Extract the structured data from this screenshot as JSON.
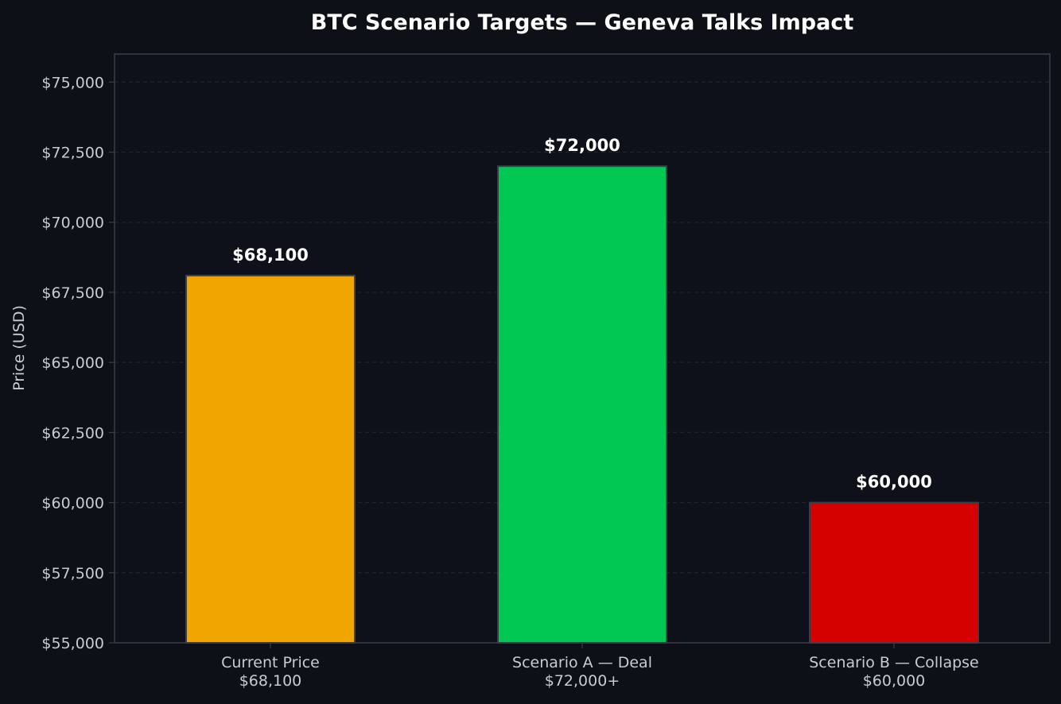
{
  "chart_data": {
    "type": "bar",
    "title": "BTC Scenario Targets — Geneva Talks Impact",
    "xlabel": "",
    "ylabel": "Price (USD)",
    "ylim": [
      55000,
      76000
    ],
    "yticks": [
      55000,
      57500,
      60000,
      62500,
      65000,
      67500,
      70000,
      72500,
      75000
    ],
    "ytick_labels": [
      "$55,000",
      "$57,500",
      "$60,000",
      "$62,500",
      "$65,000",
      "$67,500",
      "$70,000",
      "$72,500",
      "$75,000"
    ],
    "categories": [
      "Current Price\n$68,100",
      "Scenario A — Deal\n$72,000+",
      "Scenario B — Collapse\n$60,000"
    ],
    "values": [
      68100,
      72000,
      60000
    ],
    "value_labels": [
      "$68,100",
      "$72,000",
      "$60,000"
    ],
    "colors": [
      "#f0a500",
      "#00c853",
      "#d50000"
    ],
    "grid": true,
    "theme": {
      "background": "#0d1017",
      "plot_background": "#0e111a",
      "axis_color": "#3a3f47",
      "text_color": "#c8ccd2",
      "title_color": "#ffffff",
      "value_label_color": "#ffffff",
      "bar_edge_color": "#3a3f47"
    }
  }
}
